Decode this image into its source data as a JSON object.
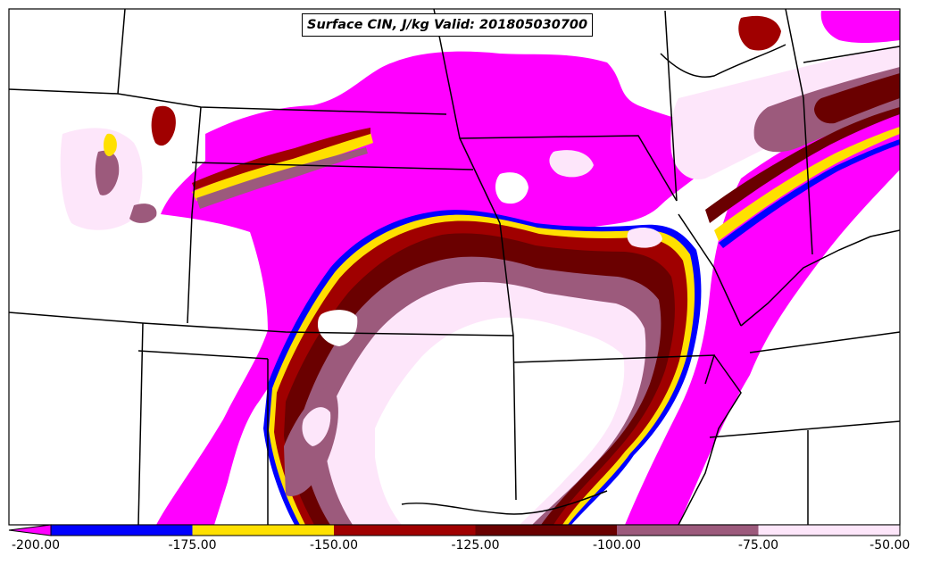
{
  "title": "Surface CIN, J/kg Valid: 201805030700",
  "colorbar": {
    "ticks": [
      "-200.00",
      "-175.00",
      "-150.00",
      "-125.00",
      "-100.00",
      "-75.00",
      "-50.00"
    ],
    "bins": [
      {
        "from": -200,
        "to": -175,
        "color": "#0000ff"
      },
      {
        "from": -175,
        "to": -150,
        "color": "#ffe000"
      },
      {
        "from": -150,
        "to": -125,
        "color": "#a00000"
      },
      {
        "from": -125,
        "to": -100,
        "color": "#6a0000"
      },
      {
        "from": -100,
        "to": -75,
        "color": "#9c5a7c"
      },
      {
        "from": -75,
        "to": -50,
        "color": "#fde6fa"
      }
    ],
    "under_color": "#ff00ff"
  },
  "colors": {
    "magenta": "#ff00ff",
    "blue": "#0000ff",
    "yellow": "#ffe000",
    "red": "#a00000",
    "dark_red": "#6a0000",
    "mauve": "#9c5a7c",
    "pale_pink": "#fde6fa",
    "border": "#000000"
  }
}
